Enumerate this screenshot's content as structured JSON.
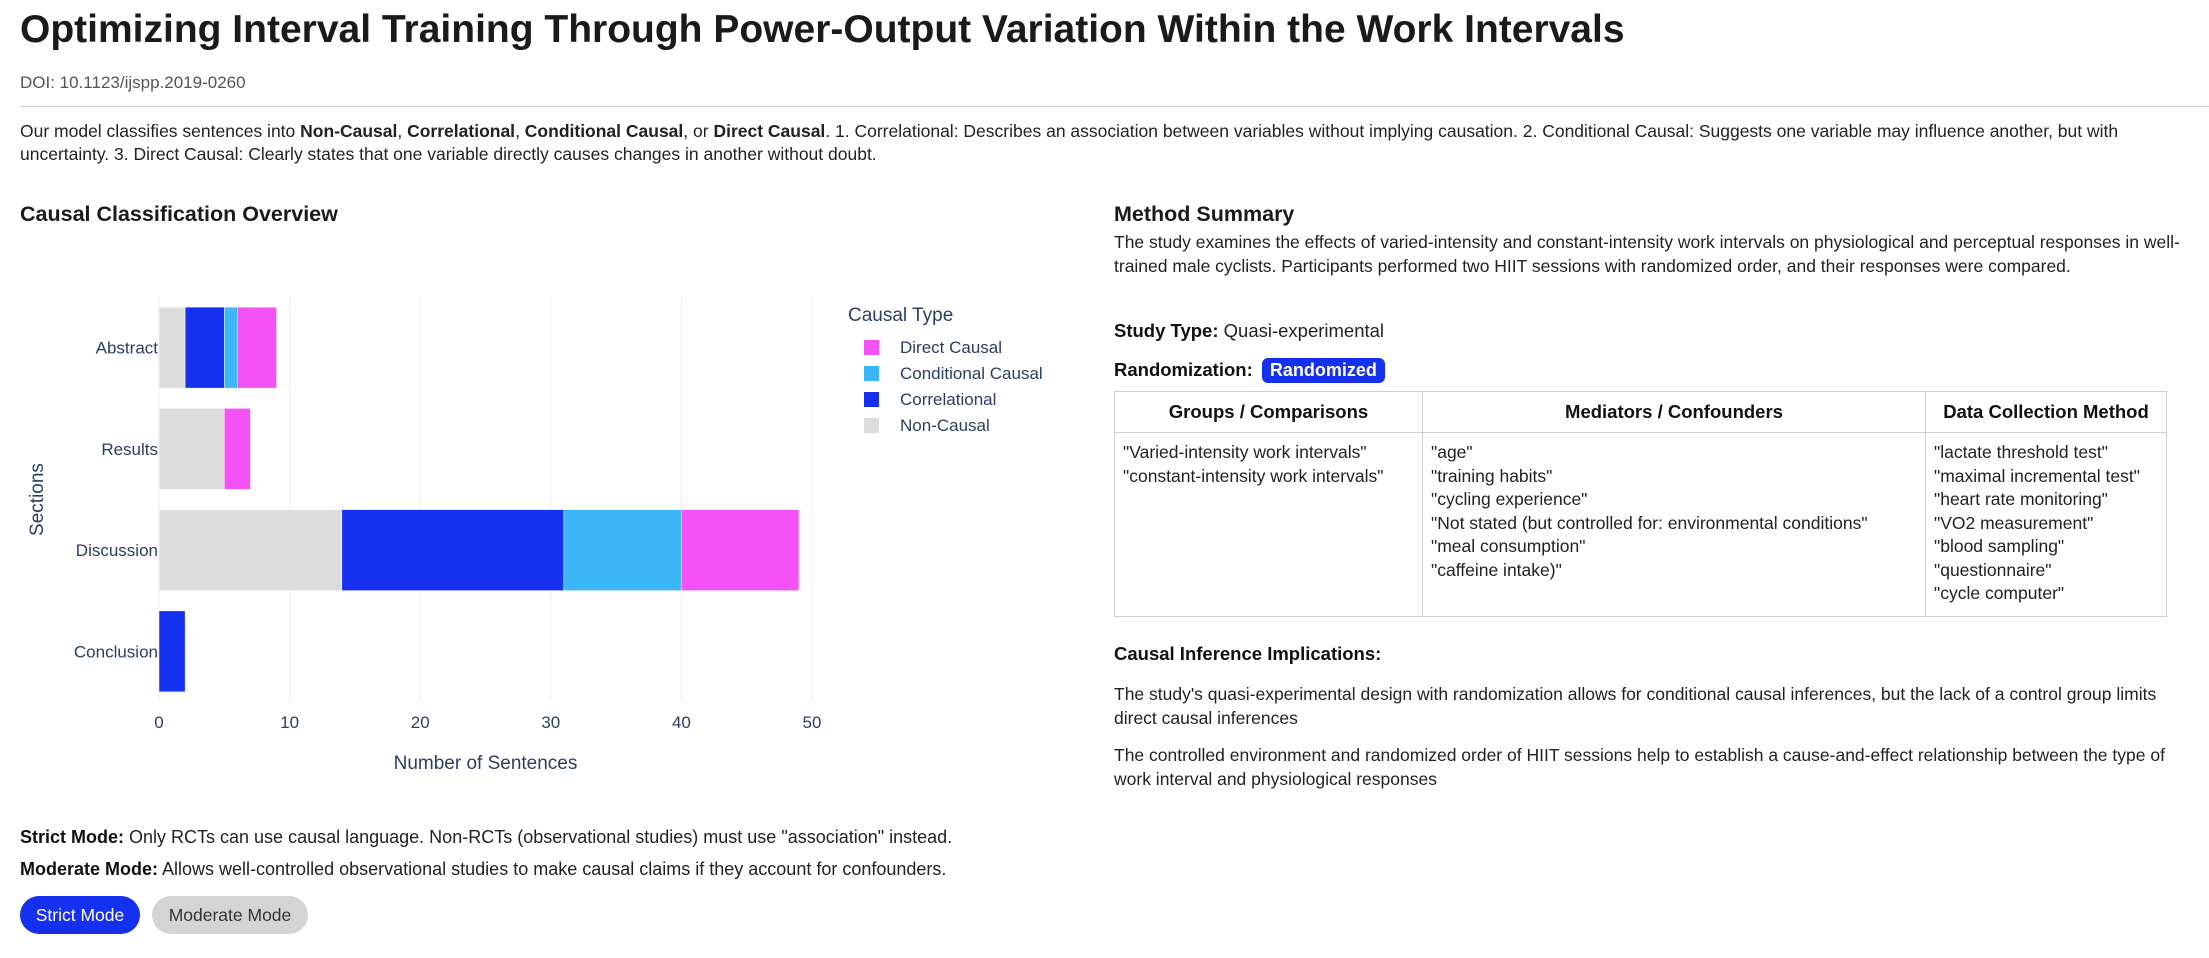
{
  "paper": {
    "title": "Optimizing Interval Training Through Power-Output Variation Within the Work Intervals",
    "doi": "DOI: 10.1123/ijspp.2019-0260"
  },
  "intro": {
    "lead": "Our model classifies sentences into ",
    "cat1": "Non-Causal",
    "sep1": ", ",
    "cat2": "Correlational",
    "sep2": ", ",
    "cat3": "Conditional Causal",
    "sep3": ", or ",
    "cat4": "Direct Causal",
    "rest": ". 1. Correlational: Describes an association between variables without implying causation. 2. Conditional Causal: Suggests one variable may influence another, but with uncertainty. 3. Direct Causal: Clearly states that one variable directly causes changes in another without doubt."
  },
  "chart_section": {
    "title": "Causal Classification Overview"
  },
  "chart_data": {
    "type": "bar",
    "orientation": "horizontal",
    "stacked": true,
    "categories": [
      "Abstract",
      "Results",
      "Discussion",
      "Conclusion"
    ],
    "series": [
      {
        "name": "Non-Causal",
        "color": "#dcdcdc",
        "values": [
          2,
          5,
          14,
          0
        ]
      },
      {
        "name": "Correlational",
        "color": "#1530ef",
        "values": [
          3,
          0,
          17,
          2
        ]
      },
      {
        "name": "Conditional Causal",
        "color": "#3db6f8",
        "values": [
          1,
          0,
          9,
          0
        ]
      },
      {
        "name": "Direct Causal",
        "color": "#f552f5",
        "values": [
          3,
          2,
          9,
          0
        ]
      }
    ],
    "xlabel": "Number of Sentences",
    "ylabel": "Sections",
    "xlim": [
      0,
      50
    ],
    "xticks": [
      0,
      10,
      20,
      30,
      40,
      50
    ],
    "legend": {
      "title": "Causal Type",
      "order": [
        "Direct Causal",
        "Conditional Causal",
        "Correlational",
        "Non-Causal"
      ],
      "placement": "right"
    },
    "grid": true
  },
  "method": {
    "title": "Method Summary",
    "summary": "The study examines the effects of varied-intensity and constant-intensity work intervals on physiological and perceptual responses in well-trained male cyclists. Participants performed two HIIT sessions with randomized order, and their responses were compared.",
    "study_type_label": "Study Type:",
    "study_type_value": "Quasi-experimental",
    "randomization_label": "Randomization:",
    "randomization_value": "Randomized"
  },
  "table": {
    "headers": [
      "Groups / Comparisons",
      "Mediators / Confounders",
      "Data Collection Method"
    ],
    "groups": [
      "\"Varied-intensity work intervals\"",
      "\"constant-intensity work intervals\""
    ],
    "mediators": [
      "\"age\"",
      "\"training habits\"",
      "\"cycling experience\"",
      "\"Not stated (but controlled for: environmental conditions\"",
      "\"meal consumption\"",
      "\"caffeine intake)\""
    ],
    "methods": [
      "\"lactate threshold test\"",
      "\"maximal incremental test\"",
      "\"heart rate monitoring\"",
      "\"VO2 measurement\"",
      "\"blood sampling\"",
      "\"questionnaire\"",
      "\"cycle computer\""
    ]
  },
  "implications": {
    "title": "Causal Inference Implications:",
    "p1": "The study's quasi-experimental design with randomization allows for conditional causal inferences, but the lack of a control group limits direct causal inferences",
    "p2": "The controlled environment and randomized order of HIIT sessions help to establish a cause-and-effect relationship between the type of work interval and physiological responses"
  },
  "modes": {
    "strict_label": "Strict Mode:",
    "strict_desc": " Only RCTs can use causal language. Non-RCTs (observational studies) must use \"association\" instead.",
    "moderate_label": "Moderate Mode:",
    "moderate_desc": " Allows well-controlled observational studies to make causal claims if they account for confounders.",
    "strict_button": "Strict Mode",
    "moderate_button": "Moderate Mode"
  }
}
